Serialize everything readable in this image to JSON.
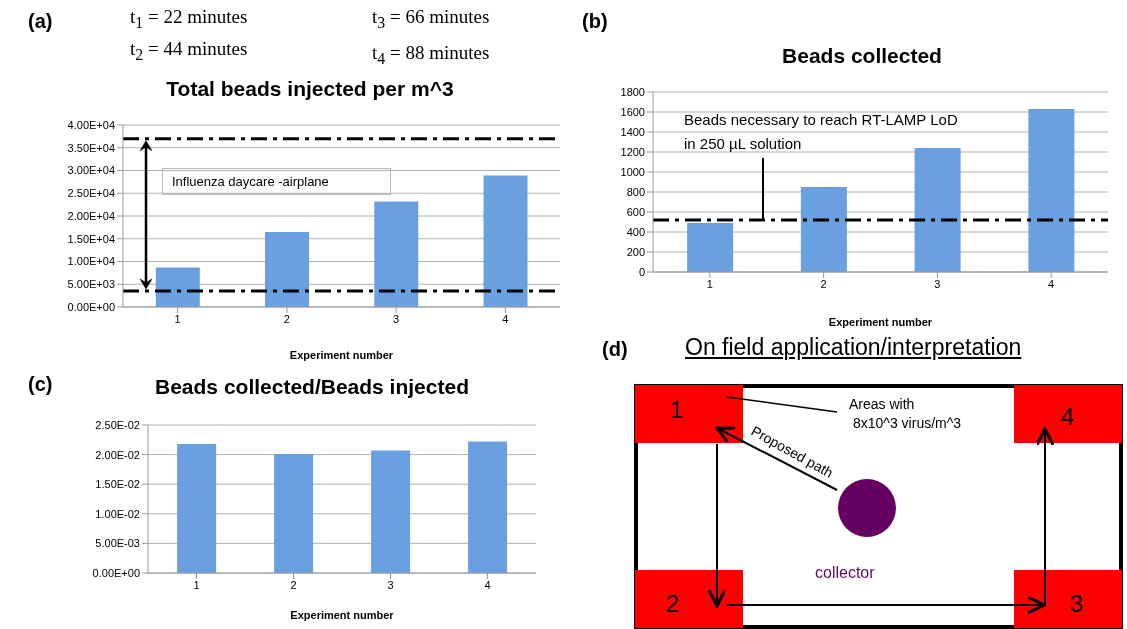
{
  "chart_data": [
    {
      "type": "bar",
      "title": "Total beads injected per m^3",
      "xlabel": "Experiment number",
      "categories": [
        "1",
        "2",
        "3",
        "4"
      ],
      "values": [
        8700,
        16500,
        23200,
        28900
      ],
      "color": "#6a9fe0",
      "ylim": [
        0,
        40000
      ],
      "yticks": [
        {
          "value": 0,
          "label": "0.00E+00"
        },
        {
          "value": 5000,
          "label": "5.00E+03"
        },
        {
          "value": 10000,
          "label": "1.00E+04"
        },
        {
          "value": 15000,
          "label": "1.50E+04"
        },
        {
          "value": 20000,
          "label": "2.00E+04"
        },
        {
          "value": 25000,
          "label": "2.50E+04"
        },
        {
          "value": 30000,
          "label": "3.00E+04"
        },
        {
          "value": 35000,
          "label": "3.50E+04"
        },
        {
          "value": 40000,
          "label": "4.00E+04"
        }
      ],
      "grid": "y",
      "ref_lines": [
        {
          "axis": "y",
          "value": 37000,
          "color": "#000000",
          "line_style": "dashed"
        },
        {
          "axis": "y",
          "value": 3500,
          "color": "#000000",
          "line_style": "dashed"
        }
      ],
      "annotations": [
        "(a)",
        "t$_{1}$ = 22 minutes",
        "t$_{2}$ = 44 minutes",
        "t$_{3}$ = 66 minutes",
        "t$_{4}$ = 88 minutes",
        "Influenza daycare -airplane"
      ]
    },
    {
      "type": "bar",
      "title": "Beads collected",
      "xlabel": "Experiment number",
      "categories": [
        "1",
        "2",
        "3",
        "4"
      ],
      "values": [
        490,
        850,
        1240,
        1630
      ],
      "color": "#6a9fe0",
      "ylim": [
        0,
        1800
      ],
      "yticks": [
        0,
        200,
        400,
        600,
        800,
        1000,
        1200,
        1400,
        1600,
        1800
      ],
      "grid": "y",
      "ref_lines": [
        {
          "axis": "y",
          "value": 520,
          "label": "Beads necessary to reach RT-LAMP LoD\nin 250 µL solution",
          "color": "#000000",
          "line_style": "dashed"
        }
      ],
      "annotations": [
        "(b)"
      ]
    },
    {
      "type": "bar",
      "title": "Beads collected/Beads injected",
      "xlabel": "Experiment number",
      "categories": [
        "1",
        "2",
        "3",
        "4"
      ],
      "values": [
        0.0218,
        0.0201,
        0.0207,
        0.0222
      ],
      "color": "#6a9fe0",
      "ylim": [
        0,
        0.025
      ],
      "yticks": [
        {
          "value": 0,
          "label": "0.00E+00"
        },
        {
          "value": 0.005,
          "label": "5.00E-03"
        },
        {
          "value": 0.01,
          "label": "1.00E-02"
        },
        {
          "value": 0.015,
          "label": "1.50E-02"
        },
        {
          "value": 0.02,
          "label": "2.00E-02"
        },
        {
          "value": 0.025,
          "label": "2.50E-02"
        }
      ],
      "grid": "y",
      "annotations": [
        "(c)"
      ]
    },
    {
      "type": "other",
      "title": "On field application/interpretation",
      "annotations": [
        "(d)",
        "1",
        "2",
        "3",
        "4",
        "Areas with",
        "8x10^3 virus/m^3",
        "Proposed path",
        "collector"
      ]
    }
  ]
}
